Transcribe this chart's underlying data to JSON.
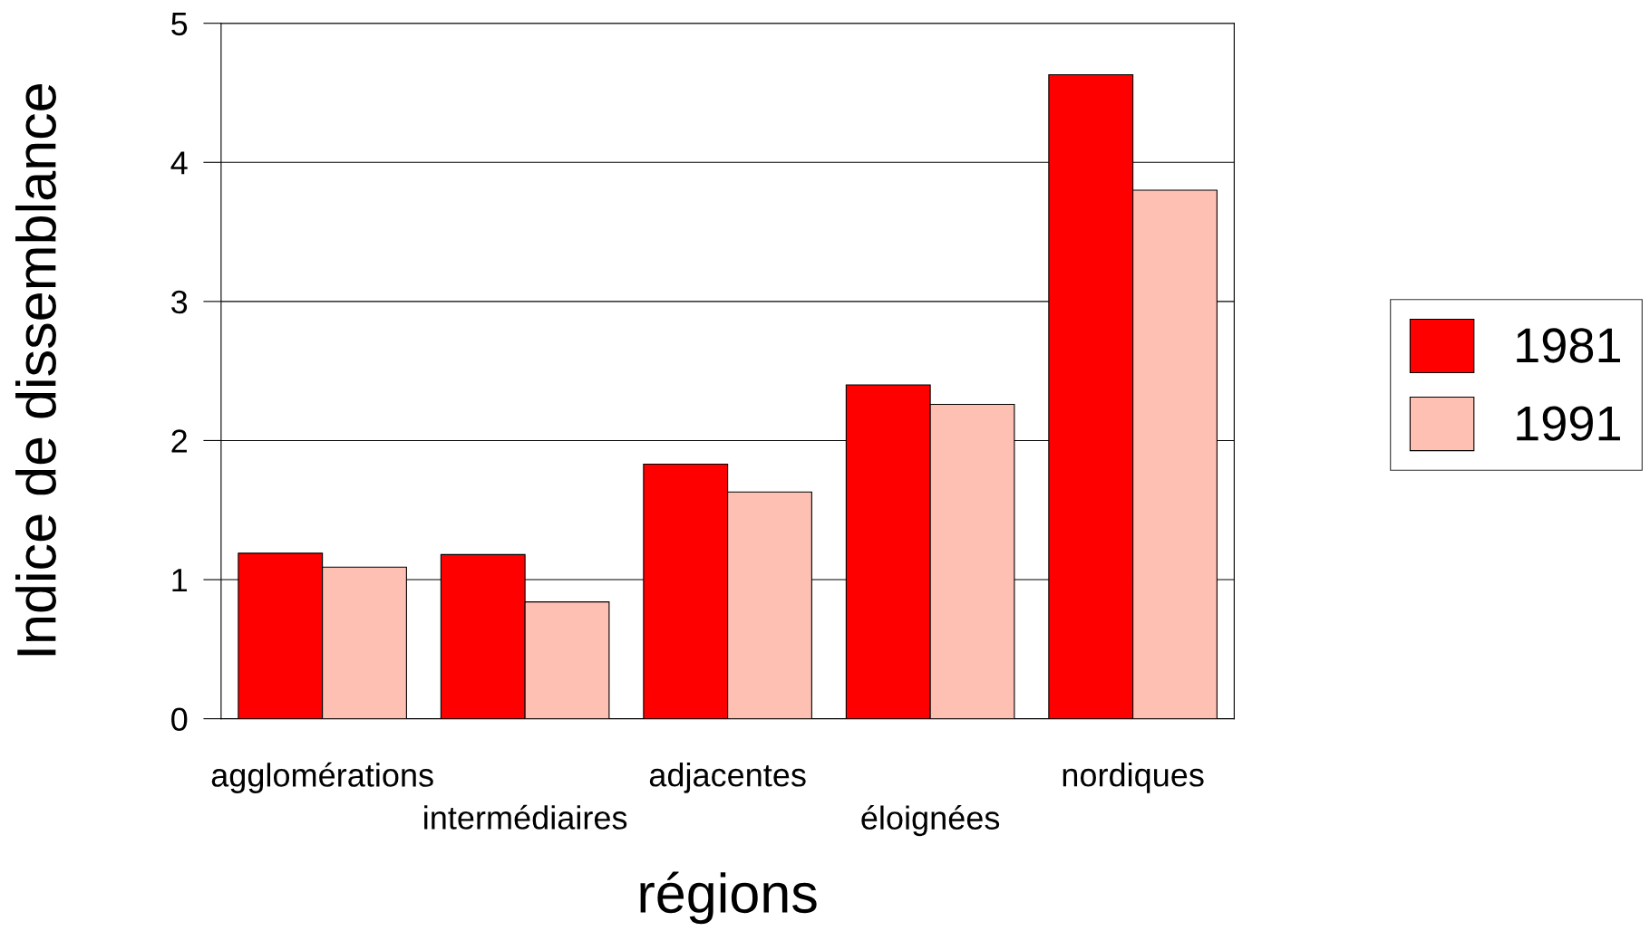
{
  "chart_data": {
    "type": "bar",
    "xlabel": "régions",
    "ylabel": "Indice de dissemblance",
    "categories": [
      "agglomérations",
      "intermédiaires",
      "adjacentes",
      "éloignées",
      "nordiques"
    ],
    "series": [
      {
        "name": "1981",
        "color": "#ff0000",
        "values": [
          1.19,
          1.18,
          1.83,
          2.4,
          4.63
        ]
      },
      {
        "name": "1991",
        "color": "#ffc0b4",
        "values": [
          1.09,
          0.84,
          1.63,
          2.26,
          3.8
        ]
      }
    ],
    "ylim": [
      0,
      5
    ],
    "yticks": [
      0,
      1,
      2,
      3,
      4,
      5
    ],
    "grid": "y",
    "legend": "right"
  }
}
